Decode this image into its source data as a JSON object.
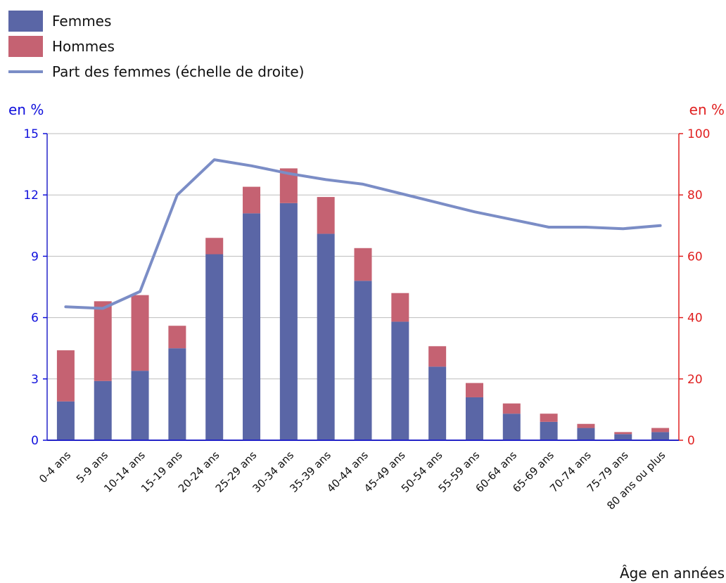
{
  "chart_data": {
    "type": "bar",
    "stacked": true,
    "categories": [
      "0-4 ans",
      "5-9 ans",
      "10-14 ans",
      "15-19 ans",
      "20-24 ans",
      "25-29 ans",
      "30-34 ans",
      "35-39 ans",
      "40-44 ans",
      "45-49 ans",
      "50-54 ans",
      "55-59 ans",
      "60-64 ans",
      "65-69 ans",
      "70-74 ans",
      "75-79 ans",
      "80 ans ou plus"
    ],
    "series": [
      {
        "name": "Femmes",
        "type": "bar",
        "axis": "left",
        "color": "#5a66a6",
        "values": [
          1.9,
          2.9,
          3.4,
          4.5,
          9.1,
          11.1,
          11.6,
          10.1,
          7.8,
          5.8,
          3.6,
          2.1,
          1.3,
          0.9,
          0.6,
          0.3,
          0.4
        ]
      },
      {
        "name": "Hommes",
        "type": "bar",
        "axis": "left",
        "color": "#c56272",
        "values": [
          2.5,
          3.9,
          3.7,
          1.1,
          0.8,
          1.3,
          1.7,
          1.8,
          1.6,
          1.4,
          1.0,
          0.7,
          0.5,
          0.4,
          0.2,
          0.1,
          0.2
        ]
      },
      {
        "name": "Part des femmes (échelle de droite)",
        "type": "line",
        "axis": "right",
        "color": "#7b8dc6",
        "values": [
          43.5,
          43,
          48.5,
          80,
          91.5,
          89.5,
          87,
          85,
          83.5,
          80.5,
          77.5,
          74.5,
          72,
          69.5,
          69.5,
          69,
          70
        ]
      }
    ],
    "y_left": {
      "label": "en %",
      "ylim": [
        0,
        15
      ],
      "ticks": [
        0,
        3,
        6,
        9,
        12,
        15
      ],
      "color": "#1010dc"
    },
    "y_right": {
      "label": "en %",
      "ylim": [
        0,
        100
      ],
      "ticks": [
        0,
        20,
        40,
        60,
        80,
        100
      ],
      "color": "#e02020"
    },
    "xlabel": "Âge en années",
    "grid": true,
    "legend_position": "top-left"
  }
}
